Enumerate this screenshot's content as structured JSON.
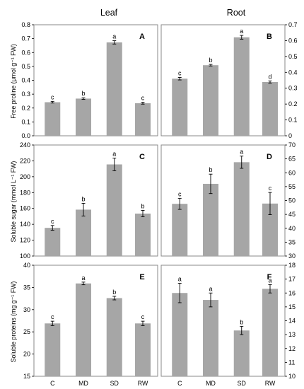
{
  "column_titles": [
    "Leaf",
    "Root"
  ],
  "row_ylabels": [
    "Free proline (μmol g⁻¹ FW)",
    "Soluble sugar (mmol L⁻¹ FW)",
    "Soluble proteins  (mg g⁻¹ FW)"
  ],
  "categories": [
    "C",
    "MD",
    "SD",
    "RW"
  ],
  "colors": {
    "bar": "#a6a6a6",
    "frame": "#888888",
    "text": "#000000"
  },
  "chart_data": [
    {
      "type": "bar",
      "panel": "A",
      "tissue": "Leaf",
      "categories": [
        "C",
        "MD",
        "SD",
        "RW"
      ],
      "values": [
        0.242,
        0.268,
        0.673,
        0.235
      ],
      "errors": [
        0.006,
        0.006,
        0.012,
        0.007
      ],
      "letters": [
        "c",
        "b",
        "a",
        "c"
      ],
      "ylim": [
        0,
        0.8
      ],
      "yticks": [
        "0.0",
        "0.1",
        "0.2",
        "0.3",
        "0.4",
        "0.5",
        "0.6",
        "0.7",
        "0.8"
      ],
      "ylabel": "Free proline (μmol g⁻¹ FW)",
      "axis_side": "left"
    },
    {
      "type": "bar",
      "panel": "B",
      "tissue": "Root",
      "categories": [
        "C",
        "MD",
        "SD",
        "RW"
      ],
      "values": [
        0.36,
        0.445,
        0.621,
        0.339
      ],
      "errors": [
        0.008,
        0.005,
        0.012,
        0.007
      ],
      "letters": [
        "c",
        "b",
        "a",
        "d"
      ],
      "ylim": [
        0,
        0.7
      ],
      "yticks": [
        "0",
        "0.1",
        "0.2",
        "0.3",
        "0.4",
        "0.5",
        "0.6",
        "0.7"
      ],
      "axis_side": "right"
    },
    {
      "type": "bar",
      "panel": "C",
      "tissue": "Leaf",
      "categories": [
        "C",
        "MD",
        "SD",
        "RW"
      ],
      "values": [
        135.5,
        158.5,
        215.5,
        153.5
      ],
      "errors": [
        3,
        8,
        8,
        4
      ],
      "letters": [
        "c",
        "b",
        "a",
        "b"
      ],
      "ylim": [
        100,
        240
      ],
      "yticks": [
        "100",
        "120",
        "140",
        "160",
        "180",
        "200",
        "220",
        "240"
      ],
      "ylabel": "Soluble sugar (mmol L⁻¹ FW)",
      "axis_side": "left"
    },
    {
      "type": "bar",
      "panel": "D",
      "tissue": "Root",
      "categories": [
        "C",
        "MD",
        "SD",
        "RW"
      ],
      "values": [
        48.8,
        56,
        63.8,
        48.9
      ],
      "errors": [
        2,
        3.5,
        2.2,
        4
      ],
      "letters": [
        "c",
        "b",
        "a",
        "c"
      ],
      "ylim": [
        30,
        70
      ],
      "yticks": [
        "30",
        "35",
        "40",
        "45",
        "50",
        "55",
        "60",
        "65",
        "70"
      ],
      "axis_side": "right"
    },
    {
      "type": "bar",
      "panel": "E",
      "tissue": "Leaf",
      "categories": [
        "C",
        "MD",
        "SD",
        "RW"
      ],
      "values": [
        26.9,
        35.9,
        32.6,
        26.9
      ],
      "errors": [
        0.5,
        0.3,
        0.4,
        0.5
      ],
      "letters": [
        "c",
        "a",
        "b",
        "c"
      ],
      "ylim": [
        15,
        40
      ],
      "yticks": [
        "15",
        "20",
        "25",
        "30",
        "35",
        "40"
      ],
      "ylabel": "Soluble proteins  (mg g⁻¹ FW)",
      "axis_side": "left"
    },
    {
      "type": "bar",
      "panel": "F",
      "tissue": "Root",
      "categories": [
        "C",
        "MD",
        "SD",
        "RW"
      ],
      "values": [
        16.0,
        15.5,
        13.3,
        16.3
      ],
      "errors": [
        0.7,
        0.5,
        0.3,
        0.3
      ],
      "letters": [
        "a",
        "a",
        "b",
        "a"
      ],
      "ylim": [
        10,
        18
      ],
      "yticks": [
        "10",
        "11",
        "12",
        "13",
        "14",
        "15",
        "16",
        "17",
        "18"
      ],
      "axis_side": "right"
    }
  ]
}
